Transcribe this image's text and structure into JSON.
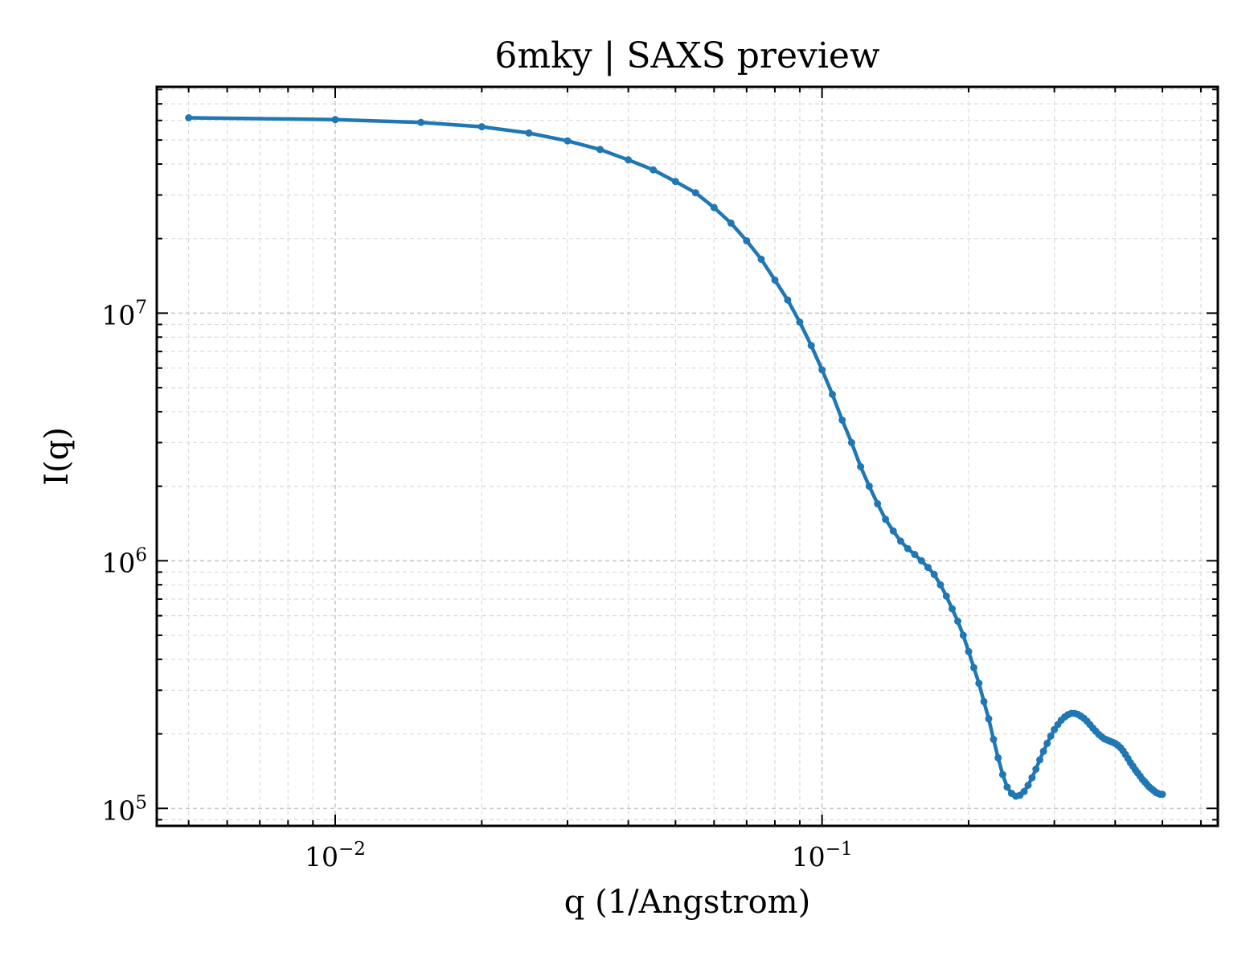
{
  "chart_data": {
    "type": "line",
    "title": "6mky | SAXS preview",
    "xlabel": "q (1/Angstrom)",
    "ylabel": "I(q)",
    "xscale": "log",
    "yscale": "log",
    "xlim": [
      0.0043,
      0.65
    ],
    "ylim": [
      85000,
      82000000
    ],
    "grid": true,
    "grid_style": "dashed, major and minor",
    "line_color": "#1f77b4",
    "markers": true,
    "x_major_ticks": [
      {
        "value": 0.01,
        "base": "10",
        "exp": "−2"
      },
      {
        "value": 0.1,
        "base": "10",
        "exp": "−1"
      }
    ],
    "y_major_ticks": [
      {
        "value": 100000,
        "base": "10",
        "exp": "5"
      },
      {
        "value": 1000000,
        "base": "10",
        "exp": "6"
      },
      {
        "value": 10000000,
        "base": "10",
        "exp": "7"
      }
    ],
    "series": [
      {
        "x": [
          0.005,
          0.01,
          0.015,
          0.02,
          0.025,
          0.03,
          0.035,
          0.04,
          0.045,
          0.05,
          0.055,
          0.06,
          0.065,
          0.07,
          0.075,
          0.08,
          0.085,
          0.09,
          0.095,
          0.1,
          0.105,
          0.11,
          0.115,
          0.12,
          0.125,
          0.13,
          0.135,
          0.14,
          0.145,
          0.15,
          0.155,
          0.16,
          0.165,
          0.17,
          0.175,
          0.18,
          0.185,
          0.19,
          0.195,
          0.2,
          0.205,
          0.21,
          0.215,
          0.22,
          0.225,
          0.23,
          0.235,
          0.24,
          0.245,
          0.25,
          0.255,
          0.26,
          0.265,
          0.27,
          0.275,
          0.28,
          0.285,
          0.29,
          0.295,
          0.3,
          0.305,
          0.31,
          0.315,
          0.32,
          0.325,
          0.33,
          0.335,
          0.34,
          0.345,
          0.35,
          0.355,
          0.36,
          0.365,
          0.37,
          0.375,
          0.38,
          0.385,
          0.39,
          0.395,
          0.4,
          0.405,
          0.41,
          0.415,
          0.42,
          0.425,
          0.43,
          0.435,
          0.44,
          0.445,
          0.45,
          0.455,
          0.46,
          0.465,
          0.47,
          0.475,
          0.48,
          0.485,
          0.49,
          0.495,
          0.5
        ],
        "y": [
          61500000,
          60500000,
          58900000,
          56600000,
          53400000,
          49600000,
          45800000,
          41600000,
          37900000,
          34000000,
          30600000,
          26700000,
          23100000,
          19600000,
          16500000,
          13600000,
          11300000,
          9200000,
          7400000,
          5900000,
          4700000,
          3700000,
          3000000,
          2400000,
          2000000,
          1700000,
          1470000,
          1320000,
          1200000,
          1120000,
          1060000,
          1000000,
          940000,
          880000,
          800000,
          720000,
          640000,
          570000,
          500000,
          430000,
          370000,
          320000,
          270000,
          230000,
          190000,
          160000,
          137000,
          122000,
          115000,
          112000,
          113000,
          117000,
          124000,
          133000,
          144000,
          157000,
          170000,
          183000,
          196000,
          208000,
          218000,
          227000,
          234000,
          239000,
          242000,
          242000,
          240000,
          236000,
          231000,
          225000,
          218000,
          211000,
          205000,
          199000,
          195000,
          191000,
          189000,
          187000,
          185000,
          183000,
          180000,
          176000,
          171000,
          165000,
          159000,
          153000,
          148000,
          143000,
          139000,
          135000,
          131000,
          128000,
          125000,
          122000,
          120000,
          118000,
          116000,
          115000,
          114000,
          114000
        ]
      }
    ]
  }
}
